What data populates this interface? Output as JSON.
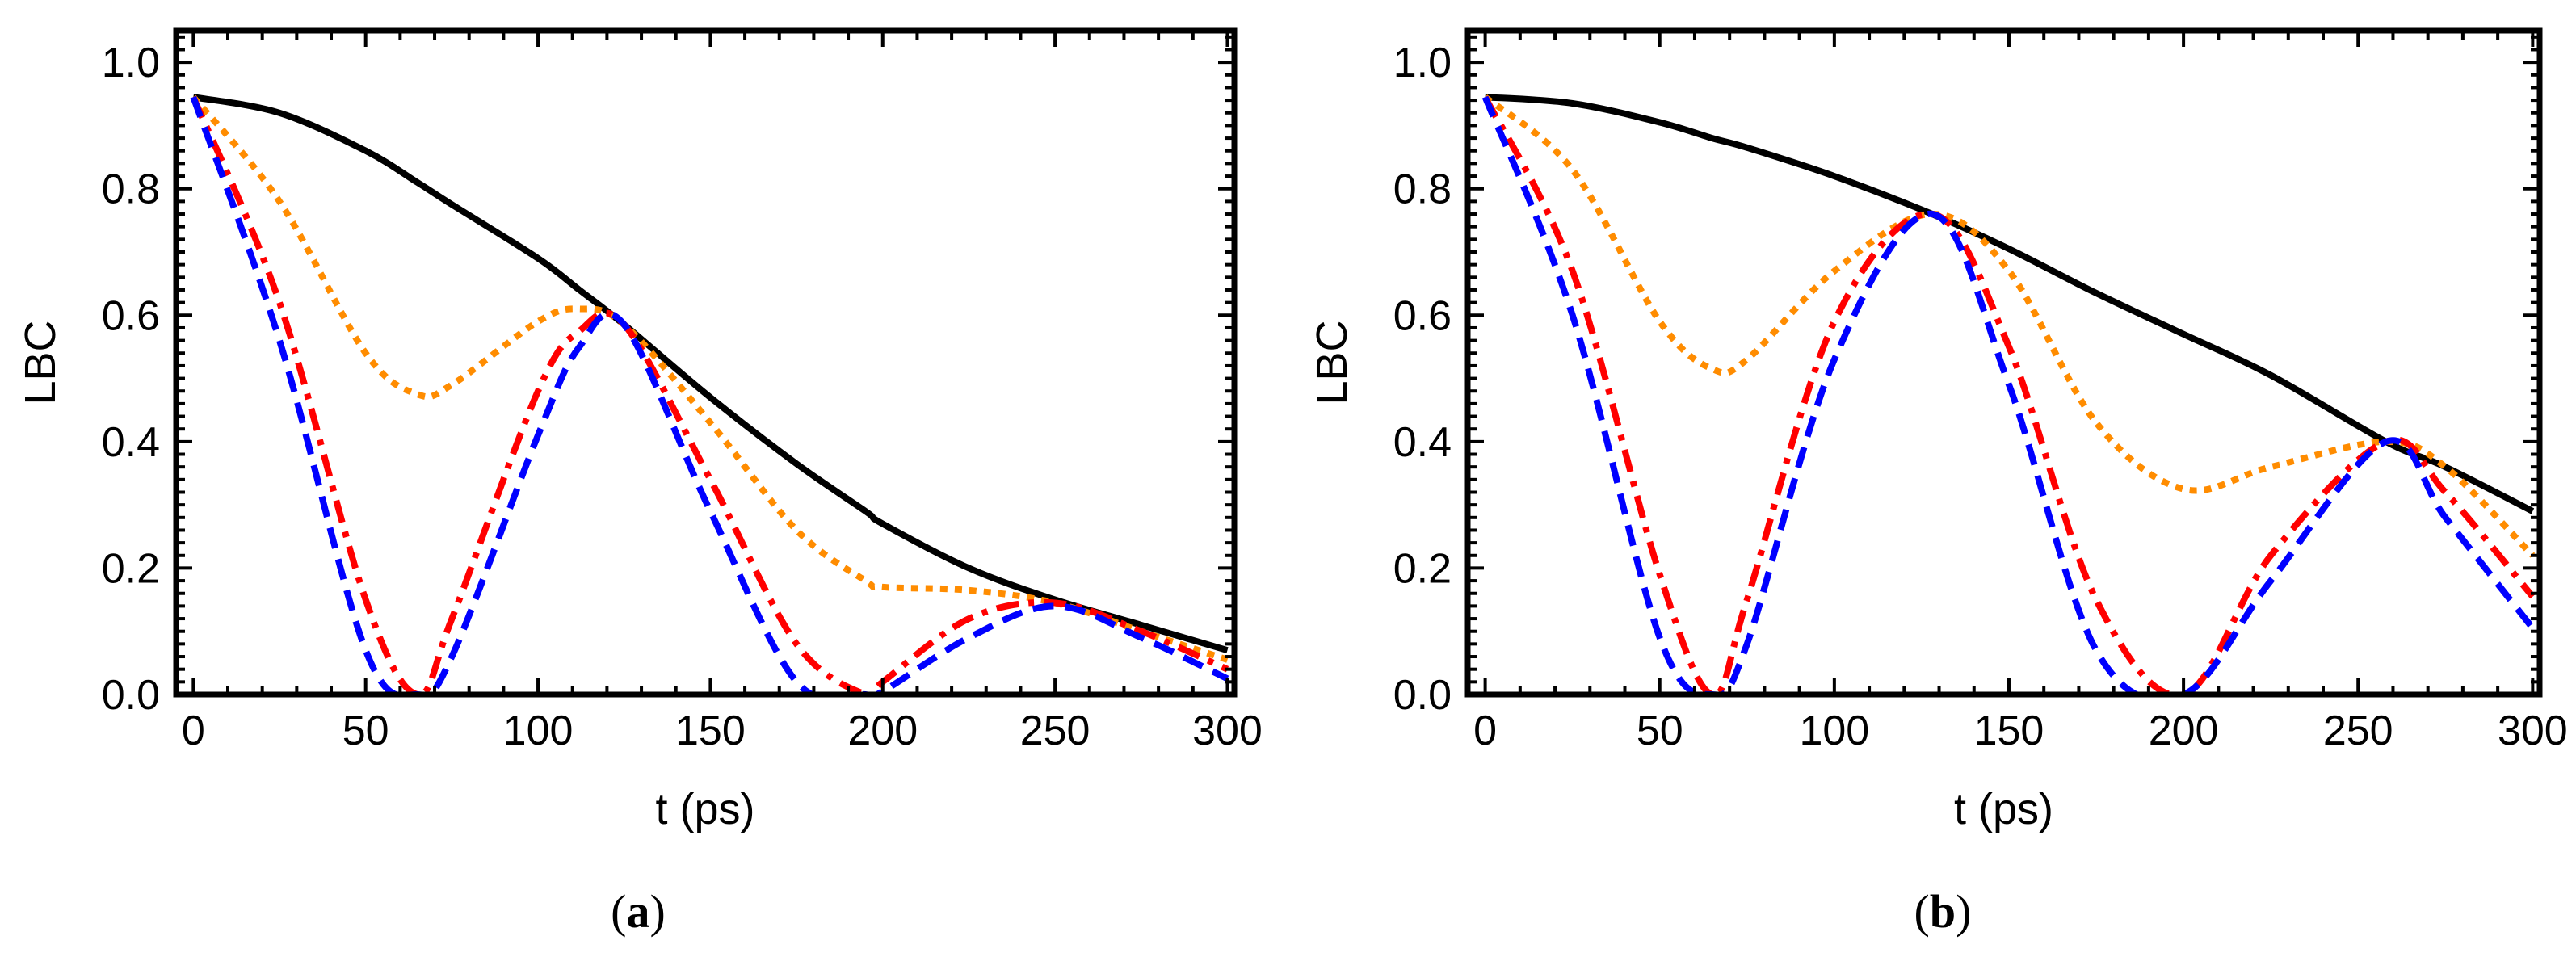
{
  "chart_data": [
    {
      "type": "line",
      "panel": "a",
      "panel_label": {
        "open": "(",
        "letter": "a",
        "close": ")"
      },
      "xlabel": "t (ps)",
      "ylabel": "LBC",
      "xlim": [
        -5,
        302
      ],
      "ylim": [
        0,
        1.05
      ],
      "xticks": [
        0,
        50,
        100,
        150,
        200,
        250,
        300
      ],
      "xtick_labels": [
        "0",
        "50",
        "100",
        "150",
        "200",
        "250",
        "300"
      ],
      "yticks": [
        0,
        0.2,
        0.4,
        0.6,
        0.8,
        1.0
      ],
      "ytick_labels": [
        "0.0",
        "0.2",
        "0.4",
        "0.6",
        "0.8",
        "1.0"
      ],
      "x": [
        0,
        25,
        50,
        65,
        75,
        100,
        112,
        125,
        150,
        175,
        195,
        200,
        225,
        250,
        275,
        300
      ],
      "series": [
        {
          "name": "black-solid",
          "color": "#000000",
          "style": "solid",
          "values": [
            0.945,
            0.92,
            0.86,
            0.81,
            0.775,
            0.69,
            0.64,
            0.585,
            0.47,
            0.365,
            0.29,
            0.27,
            0.2,
            0.15,
            0.11,
            0.07
          ]
        },
        {
          "name": "orange-dotted",
          "color": "#ff8c00",
          "style": "dotted",
          "values": [
            0.945,
            0.78,
            0.54,
            0.475,
            0.49,
            0.59,
            0.61,
            0.585,
            0.43,
            0.26,
            0.18,
            0.17,
            0.165,
            0.145,
            0.1,
            0.055
          ]
        },
        {
          "name": "red-dashdot",
          "color": "#ff0000",
          "style": "dashdot",
          "values": [
            0.945,
            0.62,
            0.15,
            0.0,
            0.12,
            0.48,
            0.575,
            0.585,
            0.34,
            0.08,
            0.0,
            0.02,
            0.12,
            0.145,
            0.1,
            0.04
          ]
        },
        {
          "name": "blue-dashed",
          "color": "#0000ff",
          "style": "dashed",
          "values": [
            0.945,
            0.56,
            0.07,
            0.0,
            0.06,
            0.41,
            0.55,
            0.585,
            0.29,
            0.02,
            0.0,
            0.005,
            0.09,
            0.14,
            0.09,
            0.025
          ]
        }
      ]
    },
    {
      "type": "line",
      "panel": "b",
      "panel_label": {
        "open": "(",
        "letter": "b",
        "close": ")"
      },
      "xlabel": "t (ps)",
      "ylabel": "LBC",
      "xlim": [
        -5,
        302
      ],
      "ylim": [
        0,
        1.05
      ],
      "xticks": [
        0,
        50,
        100,
        150,
        200,
        250,
        300
      ],
      "xtick_labels": [
        "0",
        "50",
        "100",
        "150",
        "200",
        "250",
        "300"
      ],
      "yticks": [
        0,
        0.2,
        0.4,
        0.6,
        0.8,
        1.0
      ],
      "ytick_labels": [
        "0.0",
        "0.2",
        "0.4",
        "0.6",
        "0.8",
        "1.0"
      ],
      "x": [
        0,
        25,
        50,
        65,
        75,
        100,
        128,
        150,
        175,
        200,
        225,
        258,
        275,
        300
      ],
      "series": [
        {
          "name": "black-solid",
          "color": "#000000",
          "style": "solid",
          "values": [
            0.945,
            0.935,
            0.905,
            0.88,
            0.865,
            0.82,
            0.76,
            0.705,
            0.635,
            0.57,
            0.505,
            0.4,
            0.36,
            0.29
          ]
        },
        {
          "name": "orange-dotted",
          "color": "#ff8c00",
          "style": "dotted",
          "values": [
            0.945,
            0.83,
            0.59,
            0.515,
            0.53,
            0.67,
            0.76,
            0.67,
            0.43,
            0.325,
            0.36,
            0.4,
            0.36,
            0.22
          ]
        },
        {
          "name": "red-dashdot",
          "color": "#ff0000",
          "style": "dashdot",
          "values": [
            0.945,
            0.67,
            0.19,
            0.0,
            0.15,
            0.59,
            0.76,
            0.55,
            0.15,
            0.0,
            0.22,
            0.4,
            0.32,
            0.155
          ]
        },
        {
          "name": "blue-dashed",
          "color": "#0000ff",
          "style": "dashed",
          "values": [
            0.945,
            0.6,
            0.09,
            0.0,
            0.08,
            0.53,
            0.76,
            0.49,
            0.07,
            0.0,
            0.18,
            0.4,
            0.28,
            0.105
          ]
        }
      ]
    }
  ]
}
